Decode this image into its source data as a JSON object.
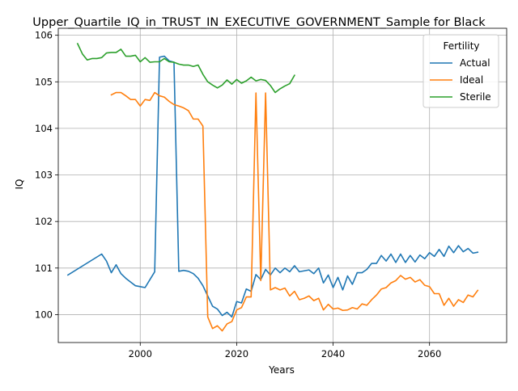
{
  "chart_data": {
    "type": "line",
    "title": "Upper_Quartile_IQ_in_TRUST_IN_EXECUTIVE_GOVERNMENT_Sample for Black",
    "xlabel": "Years",
    "ylabel": "IQ",
    "xlim": [
      1983,
      2076
    ],
    "ylim": [
      99.4,
      106.15
    ],
    "xticks": [
      2000,
      2020,
      2040,
      2060
    ],
    "yticks": [
      100,
      101,
      102,
      103,
      104,
      105,
      106
    ],
    "grid": true,
    "legend": {
      "title": "Fertility",
      "placement": "top-right"
    },
    "series": [
      {
        "name": "Actual",
        "color": "#1f77b4",
        "x": [
          1985,
          1992,
          1993,
          1994,
          1995,
          1996,
          1997,
          1998,
          1999,
          2000,
          2001,
          2002,
          2003,
          2004,
          2005,
          2006,
          2007,
          2008,
          2009,
          2010,
          2011,
          2012,
          2013,
          2014,
          2015,
          2016,
          2017,
          2018,
          2019,
          2020,
          2021,
          2022,
          2023,
          2024,
          2025,
          2026,
          2027,
          2028,
          2029,
          2030,
          2031,
          2032,
          2033,
          2034,
          2035,
          2036,
          2037,
          2038,
          2039,
          2040,
          2041,
          2042,
          2043,
          2044,
          2045,
          2046,
          2047,
          2048,
          2049,
          2050,
          2051,
          2052,
          2053,
          2054,
          2055,
          2056,
          2057,
          2058,
          2059,
          2060,
          2061,
          2062,
          2063,
          2064,
          2065,
          2066,
          2067,
          2068,
          2069,
          2070
        ],
        "y": [
          100.85,
          101.3,
          101.15,
          100.9,
          101.07,
          100.88,
          100.78,
          100.7,
          100.62,
          100.6,
          100.58,
          100.75,
          100.92,
          105.53,
          105.55,
          105.45,
          105.42,
          100.93,
          100.95,
          100.93,
          100.88,
          100.78,
          100.62,
          100.4,
          100.18,
          100.12,
          99.98,
          100.05,
          99.95,
          100.28,
          100.25,
          100.55,
          100.5,
          100.86,
          100.75,
          100.97,
          100.85,
          101.0,
          100.9,
          101.0,
          100.92,
          101.05,
          100.92,
          100.94,
          100.96,
          100.88,
          101.0,
          100.68,
          100.85,
          100.58,
          100.8,
          100.53,
          100.83,
          100.65,
          100.9,
          100.9,
          100.97,
          101.1,
          101.1,
          101.27,
          101.15,
          101.3,
          101.12,
          101.3,
          101.12,
          101.27,
          101.13,
          101.28,
          101.2,
          101.33,
          101.25,
          101.4,
          101.25,
          101.47,
          101.33,
          101.48,
          101.35,
          101.42,
          101.32,
          101.34
        ]
      },
      {
        "name": "Ideal",
        "color": "#ff7f0e",
        "x": [
          1994,
          1995,
          1996,
          1997,
          1998,
          1999,
          2000,
          2001,
          2002,
          2003,
          2004,
          2005,
          2006,
          2007,
          2008,
          2009,
          2010,
          2011,
          2012,
          2013,
          2014,
          2015,
          2016,
          2017,
          2018,
          2019,
          2020,
          2021,
          2022,
          2023,
          2024,
          2025,
          2026,
          2027,
          2028,
          2029,
          2030,
          2031,
          2032,
          2033,
          2034,
          2035,
          2036,
          2037,
          2038,
          2039,
          2040,
          2041,
          2042,
          2043,
          2044,
          2045,
          2046,
          2047,
          2048,
          2049,
          2050,
          2051,
          2052,
          2053,
          2054,
          2055,
          2056,
          2057,
          2058,
          2059,
          2060,
          2061,
          2062,
          2063,
          2064,
          2065,
          2066,
          2067,
          2068,
          2069,
          2070
        ],
        "y": [
          104.72,
          104.77,
          104.77,
          104.7,
          104.62,
          104.62,
          104.48,
          104.62,
          104.6,
          104.77,
          104.7,
          104.67,
          104.58,
          104.51,
          104.48,
          104.44,
          104.38,
          104.2,
          104.2,
          104.05,
          99.95,
          99.7,
          99.76,
          99.65,
          99.8,
          99.85,
          100.1,
          100.15,
          100.38,
          100.38,
          104.76,
          100.73,
          104.76,
          100.53,
          100.58,
          100.53,
          100.57,
          100.4,
          100.5,
          100.32,
          100.35,
          100.4,
          100.3,
          100.35,
          100.1,
          100.22,
          100.12,
          100.14,
          100.09,
          100.1,
          100.15,
          100.12,
          100.23,
          100.2,
          100.32,
          100.42,
          100.55,
          100.58,
          100.68,
          100.73,
          100.84,
          100.76,
          100.8,
          100.7,
          100.75,
          100.63,
          100.6,
          100.45,
          100.45,
          100.2,
          100.35,
          100.18,
          100.32,
          100.26,
          100.42,
          100.38,
          100.52
        ]
      },
      {
        "name": "Sterile",
        "color": "#2ca02c",
        "x": [
          1987,
          1988,
          1989,
          1990,
          1991,
          1992,
          1993,
          1994,
          1995,
          1996,
          1997,
          1998,
          1999,
          2000,
          2001,
          2002,
          2003,
          2004,
          2005,
          2006,
          2007,
          2008,
          2009,
          2010,
          2011,
          2012,
          2013,
          2014,
          2015,
          2016,
          2017,
          2018,
          2019,
          2020,
          2021,
          2022,
          2023,
          2024,
          2025,
          2026,
          2027,
          2028,
          2029,
          2030,
          2031,
          2032
        ],
        "y": [
          105.82,
          105.6,
          105.47,
          105.5,
          105.5,
          105.52,
          105.62,
          105.63,
          105.63,
          105.7,
          105.55,
          105.55,
          105.57,
          105.43,
          105.52,
          105.42,
          105.43,
          105.43,
          105.5,
          105.43,
          105.42,
          105.38,
          105.36,
          105.36,
          105.33,
          105.36,
          105.16,
          105.0,
          104.93,
          104.87,
          104.93,
          105.04,
          104.95,
          105.05,
          104.97,
          105.02,
          105.1,
          105.02,
          105.05,
          105.03,
          104.92,
          104.77,
          104.85,
          104.91,
          104.96,
          105.14
        ]
      }
    ]
  }
}
